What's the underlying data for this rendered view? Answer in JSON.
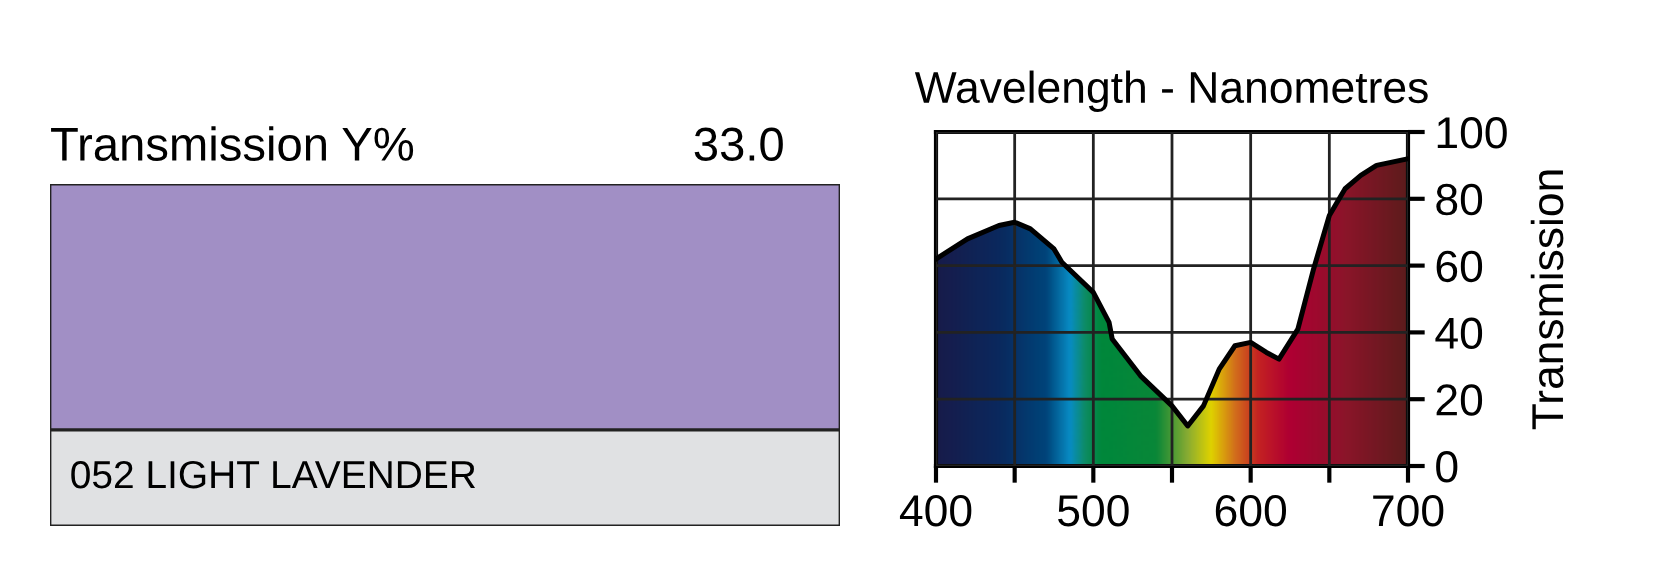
{
  "chart_data": [
    {
      "type": "other",
      "title": "Transmission Y%",
      "annotations": [
        "33.0",
        "052 LIGHT LAVENDER"
      ],
      "colors": [
        "#a18fc5",
        "#e0e1e3"
      ]
    },
    {
      "type": "area",
      "xlabel": "Wavelength - Nanometres",
      "ylabel": "Transmission",
      "x": [
        400,
        420,
        440,
        450,
        460,
        475,
        480,
        500,
        510,
        512,
        530,
        550,
        560,
        570,
        580,
        590,
        600,
        610,
        618,
        630,
        640,
        650,
        660,
        670,
        680,
        700
      ],
      "series": [
        {
          "color": "#000000",
          "values": [
            62,
            68,
            72,
            73,
            71,
            65,
            61,
            52,
            43,
            38,
            27,
            18,
            12,
            18,
            29,
            36,
            37,
            34,
            32,
            41,
            59,
            75,
            83,
            87,
            90,
            92
          ]
        }
      ],
      "xlim": [
        400,
        700
      ],
      "xticks": [
        400,
        {
          "value": 450,
          "label": null
        },
        500,
        {
          "value": 550,
          "label": null
        },
        600,
        {
          "value": 650,
          "label": null
        },
        700
      ],
      "ylim": [
        0,
        100
      ],
      "yticks": [
        0,
        20,
        40,
        60,
        80,
        100
      ],
      "grid": true
    }
  ]
}
